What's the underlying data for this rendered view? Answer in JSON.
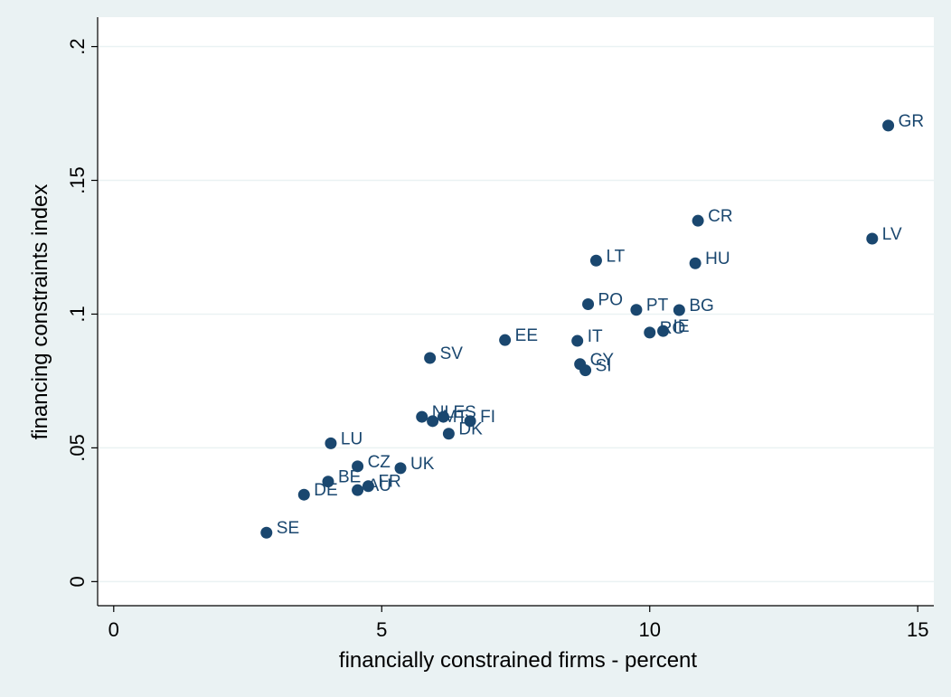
{
  "colors": {
    "outer_background": "#eaf2f3",
    "plot_background": "#ffffff",
    "gridline": "#eaf2f3",
    "marker": "#1a476f",
    "marker_label": "#1a476f",
    "axis_text": "#000000"
  },
  "chart_data": {
    "type": "scatter",
    "title": "",
    "xlabel": "financially constrained firms - percent",
    "ylabel": "financing constraints index",
    "xlim": [
      -0.3,
      15.3
    ],
    "ylim": [
      -0.009,
      0.211
    ],
    "xticks": [
      0,
      5,
      10,
      15
    ],
    "xtick_labels": [
      "0",
      "5",
      "10",
      "15"
    ],
    "yticks": [
      0,
      0.05,
      0.1,
      0.15,
      0.2
    ],
    "ytick_labels": [
      "0",
      ".05",
      ".1",
      ".15",
      ".2"
    ],
    "grid": "horizontal",
    "legend": "none",
    "points": [
      {
        "label": "GR",
        "x": 14.45,
        "y": 0.1705
      },
      {
        "label": "LV",
        "x": 14.15,
        "y": 0.1282
      },
      {
        "label": "CR",
        "x": 10.9,
        "y": 0.1349
      },
      {
        "label": "HU",
        "x": 10.85,
        "y": 0.119
      },
      {
        "label": "LT",
        "x": 9.0,
        "y": 0.12
      },
      {
        "label": "PO",
        "x": 8.85,
        "y": 0.1037
      },
      {
        "label": "PT",
        "x": 9.75,
        "y": 0.1016
      },
      {
        "label": "BG",
        "x": 10.55,
        "y": 0.1015
      },
      {
        "label": "RO",
        "x": 10.0,
        "y": 0.0931
      },
      {
        "label": "IE",
        "x": 10.25,
        "y": 0.0937
      },
      {
        "label": "EE",
        "x": 7.3,
        "y": 0.0903
      },
      {
        "label": "IT",
        "x": 8.65,
        "y": 0.09
      },
      {
        "label": "SV",
        "x": 5.9,
        "y": 0.0836
      },
      {
        "label": "CY",
        "x": 8.7,
        "y": 0.0813
      },
      {
        "label": "SI",
        "x": 8.8,
        "y": 0.079
      },
      {
        "label": "NL",
        "x": 5.75,
        "y": 0.0616
      },
      {
        "label": "MT",
        "x": 5.95,
        "y": 0.06
      },
      {
        "label": "ES",
        "x": 6.15,
        "y": 0.0616
      },
      {
        "label": "FI",
        "x": 6.65,
        "y": 0.06
      },
      {
        "label": "DK",
        "x": 6.25,
        "y": 0.0553
      },
      {
        "label": "LU",
        "x": 4.05,
        "y": 0.0517
      },
      {
        "label": "CZ",
        "x": 4.55,
        "y": 0.0431
      },
      {
        "label": "UK",
        "x": 5.35,
        "y": 0.0424
      },
      {
        "label": "BE",
        "x": 4.0,
        "y": 0.0374
      },
      {
        "label": "FR",
        "x": 4.75,
        "y": 0.0357
      },
      {
        "label": "AU",
        "x": 4.55,
        "y": 0.0342
      },
      {
        "label": "DE",
        "x": 3.55,
        "y": 0.0325
      },
      {
        "label": "SE",
        "x": 2.85,
        "y": 0.0183
      }
    ]
  }
}
